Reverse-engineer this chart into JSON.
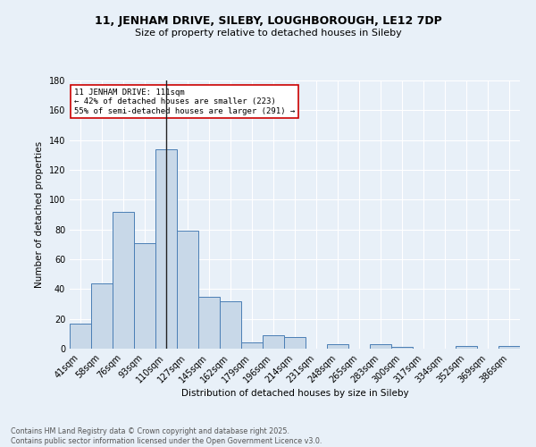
{
  "title1": "11, JENHAM DRIVE, SILEBY, LOUGHBOROUGH, LE12 7DP",
  "title2": "Size of property relative to detached houses in Sileby",
  "xlabel": "Distribution of detached houses by size in Sileby",
  "ylabel": "Number of detached properties",
  "categories": [
    "41sqm",
    "58sqm",
    "76sqm",
    "93sqm",
    "110sqm",
    "127sqm",
    "145sqm",
    "162sqm",
    "179sqm",
    "196sqm",
    "214sqm",
    "231sqm",
    "248sqm",
    "265sqm",
    "283sqm",
    "300sqm",
    "317sqm",
    "334sqm",
    "352sqm",
    "369sqm",
    "386sqm"
  ],
  "values": [
    17,
    44,
    92,
    71,
    134,
    79,
    35,
    32,
    4,
    9,
    8,
    0,
    3,
    0,
    3,
    1,
    0,
    0,
    2,
    0,
    2
  ],
  "bar_color": "#c8d8e8",
  "bar_edge_color": "#4a7eb5",
  "vline_x_idx": 4,
  "vline_color": "#222222",
  "annotation_title": "11 JENHAM DRIVE: 111sqm",
  "annotation_line1": "← 42% of detached houses are smaller (223)",
  "annotation_line2": "55% of semi-detached houses are larger (291) →",
  "annotation_box_color": "#ffffff",
  "annotation_edge_color": "#cc0000",
  "ylim": [
    0,
    180
  ],
  "yticks": [
    0,
    20,
    40,
    60,
    80,
    100,
    120,
    140,
    160,
    180
  ],
  "bg_color": "#e8f0f8",
  "grid_color": "#ffffff",
  "footer1": "Contains HM Land Registry data © Crown copyright and database right 2025.",
  "footer2": "Contains public sector information licensed under the Open Government Licence v3.0."
}
